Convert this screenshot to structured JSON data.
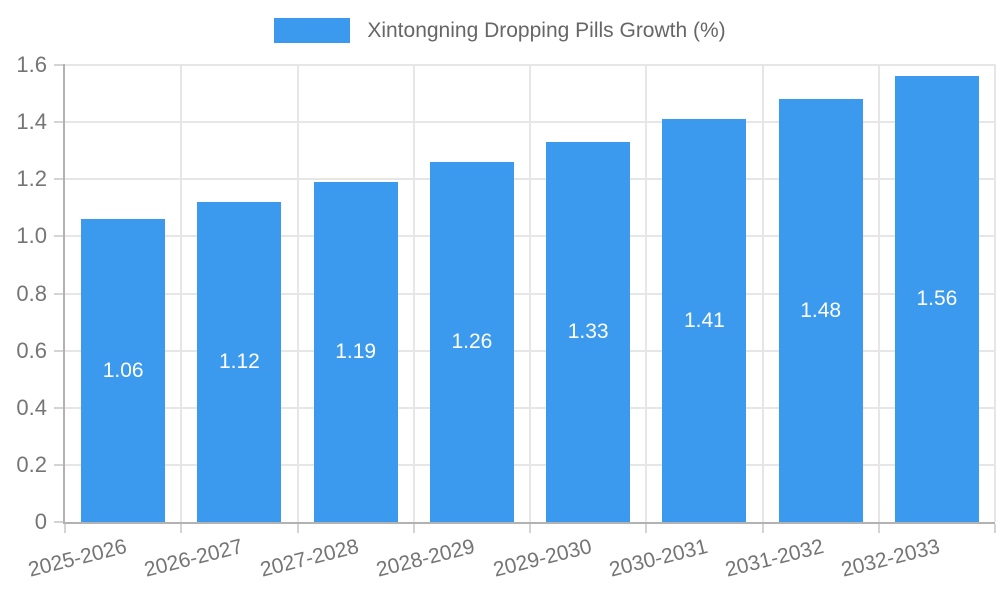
{
  "chart_data": {
    "type": "bar",
    "title": "",
    "series_name": "Xintongning Dropping Pills Growth (%)",
    "categories": [
      "2025-2026",
      "2026-2027",
      "2027-2028",
      "2028-2029",
      "2029-2030",
      "2030-2031",
      "2031-2032",
      "2032-2033"
    ],
    "values": [
      1.06,
      1.12,
      1.19,
      1.26,
      1.33,
      1.41,
      1.48,
      1.56
    ],
    "value_labels": [
      "1.06",
      "1.12",
      "1.19",
      "1.26",
      "1.33",
      "1.41",
      "1.48",
      "1.56"
    ],
    "xlabel": "",
    "ylabel": "",
    "ylim": [
      0,
      1.6
    ],
    "yticks": [
      0,
      0.2,
      0.4,
      0.6,
      0.8,
      1.0,
      1.2,
      1.4,
      1.6
    ],
    "ytick_labels": [
      "0",
      "0.2",
      "0.4",
      "0.6",
      "0.8",
      "1.0",
      "1.2",
      "1.4",
      "1.6"
    ],
    "grid": true,
    "legend_position": "top-center",
    "colors": {
      "bar": "#3B9AEE",
      "bar_label": "#FFFFFF",
      "axis_text": "#757575",
      "legend_text": "#666666",
      "grid_line": "#E6E6E6",
      "axis_line": "#B2B2B2",
      "tick_mark": "#D4D4D4",
      "background": "#FFFFFF"
    }
  }
}
